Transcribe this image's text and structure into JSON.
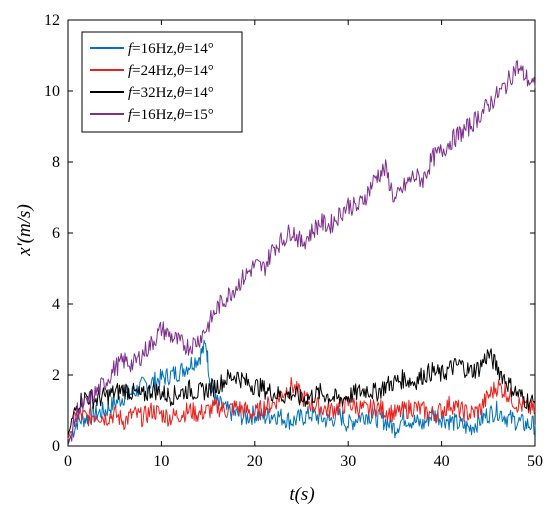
{
  "chart_data": {
    "type": "line",
    "xlabel": "t(s)",
    "ylabel": "x'(m/s)",
    "xlim": [
      0,
      50
    ],
    "ylim": [
      0,
      12
    ],
    "xticks": [
      0,
      10,
      20,
      30,
      40,
      50
    ],
    "yticks": [
      0,
      2,
      4,
      6,
      8,
      10,
      12
    ],
    "grid": false,
    "legend_position": "top-left",
    "series": [
      {
        "name": "f=16Hz,θ=14°",
        "label_parts": {
          "p1": "f",
          "p2": "=16Hz,",
          "p3": "θ",
          "p4": "=14°"
        },
        "color": "#0072BD",
        "x": [
          0,
          1,
          2,
          3,
          4,
          5,
          6,
          7,
          8,
          9,
          10,
          11,
          12,
          13,
          14,
          14.8,
          15.3,
          16,
          17,
          18,
          19,
          20,
          21,
          22,
          23,
          24,
          25,
          26,
          27,
          28,
          29,
          30,
          31,
          32,
          33,
          34,
          35,
          36,
          37,
          38,
          39,
          40,
          41,
          42,
          43,
          44,
          45,
          46,
          47,
          48,
          49,
          50
        ],
        "y": [
          0.1,
          0.7,
          0.8,
          0.9,
          1.0,
          1.2,
          1.4,
          1.5,
          1.7,
          1.8,
          1.9,
          2.0,
          2.1,
          2.3,
          2.5,
          2.85,
          1.6,
          1.2,
          1.0,
          0.9,
          0.8,
          0.9,
          0.8,
          0.9,
          0.8,
          0.7,
          0.8,
          0.9,
          0.8,
          0.7,
          0.9,
          0.6,
          0.8,
          0.9,
          0.8,
          0.7,
          0.5,
          0.8,
          0.7,
          0.6,
          0.9,
          0.8,
          0.7,
          0.6,
          0.5,
          0.7,
          0.9,
          1.0,
          0.8,
          0.7,
          0.6,
          0.6
        ]
      },
      {
        "name": "f=24Hz,θ=14°",
        "label_parts": {
          "p1": "f",
          "p2": "=24Hz,",
          "p3": "θ",
          "p4": "=14°"
        },
        "color": "#E8221E",
        "x": [
          0,
          1,
          2,
          3,
          4,
          5,
          6,
          7,
          8,
          9,
          10,
          11,
          12,
          13,
          14,
          15,
          16,
          17,
          18,
          19,
          20,
          21,
          22,
          23,
          24,
          25,
          26,
          27,
          28,
          29,
          30,
          31,
          32,
          33,
          34,
          35,
          36,
          37,
          38,
          39,
          40,
          41,
          42,
          43,
          44,
          45,
          46,
          47,
          48,
          49,
          50
        ],
        "y": [
          0.2,
          0.9,
          0.8,
          0.9,
          0.8,
          0.9,
          0.7,
          0.9,
          0.8,
          1.0,
          0.9,
          0.8,
          0.9,
          1.0,
          0.9,
          1.0,
          1.1,
          1.0,
          1.1,
          1.0,
          0.9,
          1.1,
          1.2,
          1.5,
          1.7,
          1.4,
          1.2,
          1.1,
          1.0,
          1.1,
          1.2,
          1.1,
          1.0,
          1.1,
          1.0,
          0.9,
          1.0,
          1.1,
          1.0,
          0.9,
          1.0,
          1.2,
          1.0,
          0.9,
          1.0,
          1.4,
          1.7,
          1.5,
          1.2,
          1.1,
          1.0
        ]
      },
      {
        "name": "f=32Hz,θ=14°",
        "label_parts": {
          "p1": "f",
          "p2": "=32Hz,",
          "p3": "θ",
          "p4": "=14°"
        },
        "color": "#000000",
        "x": [
          0,
          1,
          2,
          3,
          4,
          5,
          6,
          7,
          8,
          9,
          10,
          11,
          12,
          13,
          14,
          15,
          16,
          17,
          18,
          19,
          20,
          21,
          22,
          23,
          24,
          25,
          26,
          27,
          28,
          29,
          30,
          31,
          32,
          33,
          34,
          35,
          36,
          37,
          38,
          39,
          40,
          41,
          42,
          43,
          44,
          45,
          46,
          47,
          48,
          49,
          50
        ],
        "y": [
          0.3,
          1.2,
          1.4,
          1.3,
          1.4,
          1.5,
          1.6,
          1.5,
          1.4,
          1.6,
          1.5,
          1.4,
          1.5,
          1.6,
          1.5,
          1.6,
          1.7,
          1.9,
          2.0,
          1.8,
          1.7,
          1.6,
          1.5,
          1.4,
          1.5,
          1.3,
          1.4,
          1.5,
          1.4,
          1.3,
          1.4,
          1.5,
          1.6,
          1.5,
          1.7,
          1.8,
          1.9,
          1.8,
          2.0,
          2.1,
          2.0,
          2.2,
          2.3,
          2.1,
          2.2,
          2.6,
          2.2,
          1.8,
          1.5,
          1.3,
          1.2
        ]
      },
      {
        "name": "f=16Hz,θ=15°",
        "label_parts": {
          "p1": "f",
          "p2": "=16Hz,",
          "p3": "θ",
          "p4": "=15°"
        },
        "color": "#7E2F8E",
        "x": [
          0,
          1,
          2,
          3,
          4,
          5,
          6,
          7,
          8,
          9,
          10,
          11,
          12,
          13,
          14,
          15,
          16,
          17,
          18,
          19,
          20,
          21,
          22,
          23,
          24,
          25,
          26,
          27,
          28,
          29,
          30,
          31,
          32,
          33,
          34,
          35,
          36,
          37,
          38,
          39,
          40,
          41,
          42,
          43,
          44,
          45,
          46,
          47,
          48,
          49,
          50
        ],
        "y": [
          0.0,
          1.0,
          1.2,
          1.5,
          1.8,
          2.2,
          2.4,
          2.3,
          2.6,
          2.9,
          3.3,
          3.1,
          2.9,
          2.8,
          3.0,
          3.4,
          3.9,
          4.2,
          4.5,
          4.8,
          5.1,
          5.0,
          5.6,
          5.8,
          6.1,
          5.7,
          6.0,
          6.3,
          6.2,
          6.5,
          6.8,
          6.7,
          7.1,
          7.6,
          7.8,
          6.9,
          7.3,
          7.6,
          7.5,
          8.1,
          8.3,
          8.6,
          8.8,
          9.0,
          9.3,
          9.6,
          9.9,
          10.2,
          10.7,
          10.4,
          10.1
        ]
      }
    ]
  }
}
